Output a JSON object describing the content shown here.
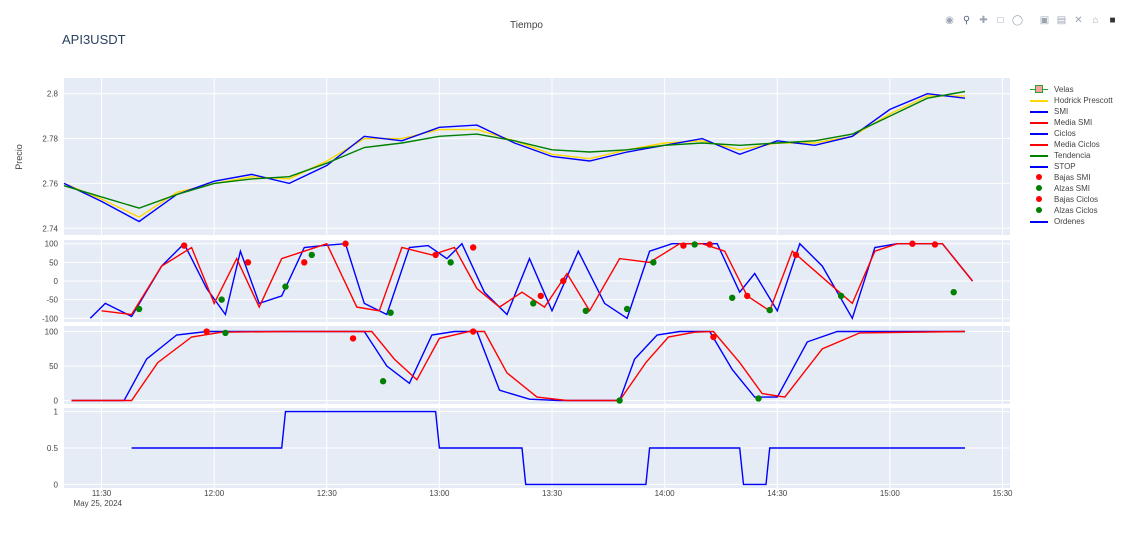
{
  "title": "API3USDT",
  "xaxis_title": "Tiempo",
  "yaxis_title": "Precio",
  "date_label": "May 25, 2024",
  "modebar": [
    "camera-icon",
    "zoom-icon",
    "pan-icon",
    "box-select-icon",
    "lasso-icon",
    "zoom-in-icon",
    "zoom-out-icon",
    "autoscale-icon",
    "reset-icon",
    "plotly-logo-icon"
  ],
  "legend": [
    {
      "name": "Velas",
      "color": "#2ca02c",
      "kind": "candle"
    },
    {
      "name": "Hodrick Prescott",
      "color": "#ffd700",
      "kind": "line"
    },
    {
      "name": "SMI",
      "color": "#0000ff",
      "kind": "line"
    },
    {
      "name": "Media SMI",
      "color": "#ff0000",
      "kind": "line"
    },
    {
      "name": "Ciclos",
      "color": "#0000ff",
      "kind": "line"
    },
    {
      "name": "Media Ciclos",
      "color": "#ff0000",
      "kind": "line"
    },
    {
      "name": "Tendencia",
      "color": "#008000",
      "kind": "line"
    },
    {
      "name": "STOP",
      "color": "#0000ff",
      "kind": "line"
    },
    {
      "name": "Bajas SMI",
      "color": "#ff0000",
      "kind": "marker"
    },
    {
      "name": "Alzas SMI",
      "color": "#008000",
      "kind": "marker"
    },
    {
      "name": "Bajas Ciclos",
      "color": "#ff0000",
      "kind": "marker"
    },
    {
      "name": "Alzas Ciclos",
      "color": "#008000",
      "kind": "marker"
    },
    {
      "name": "Ordenes",
      "color": "#0000ff",
      "kind": "line"
    }
  ],
  "chart_data": {
    "type": "line",
    "x_range": [
      "11:20",
      "15:32"
    ],
    "x_ticks": [
      "11:30",
      "12:00",
      "12:30",
      "13:00",
      "13:30",
      "14:00",
      "14:30",
      "15:00",
      "15:30"
    ],
    "grid": true,
    "legend_position": "right",
    "panels": [
      {
        "name": "price",
        "ylim": [
          2.737,
          2.807
        ],
        "y_ticks": [
          2.74,
          2.76,
          2.78,
          2.8
        ],
        "series": [
          {
            "name": "Hodrick Prescott",
            "x": [
              "11:20",
              "11:30",
              "11:40",
              "11:50",
              "12:00",
              "12:10",
              "12:20",
              "12:30",
              "12:40",
              "12:50",
              "13:00",
              "13:10",
              "13:20",
              "13:30",
              "13:40",
              "13:50",
              "14:00",
              "14:10",
              "14:20",
              "14:30",
              "14:40",
              "14:50",
              "15:00",
              "15:10",
              "15:20"
            ],
            "y": [
              2.76,
              2.753,
              2.745,
              2.756,
              2.76,
              2.763,
              2.762,
              2.77,
              2.78,
              2.78,
              2.784,
              2.784,
              2.779,
              2.773,
              2.771,
              2.775,
              2.778,
              2.779,
              2.775,
              2.778,
              2.778,
              2.781,
              2.791,
              2.799,
              2.799
            ]
          },
          {
            "name": "SMI",
            "x": [
              "11:20",
              "11:30",
              "11:40",
              "11:50",
              "12:00",
              "12:10",
              "12:20",
              "12:30",
              "12:40",
              "12:50",
              "13:00",
              "13:10",
              "13:20",
              "13:30",
              "13:40",
              "13:50",
              "14:00",
              "14:10",
              "14:20",
              "14:30",
              "14:40",
              "14:50",
              "15:00",
              "15:10",
              "15:20"
            ],
            "y": [
              2.76,
              2.752,
              2.743,
              2.755,
              2.761,
              2.764,
              2.76,
              2.768,
              2.781,
              2.779,
              2.785,
              2.786,
              2.778,
              2.772,
              2.77,
              2.774,
              2.777,
              2.78,
              2.773,
              2.779,
              2.777,
              2.781,
              2.793,
              2.8,
              2.798
            ]
          },
          {
            "name": "Tendencia",
            "x": [
              "11:20",
              "11:30",
              "11:40",
              "11:50",
              "12:00",
              "12:10",
              "12:20",
              "12:30",
              "12:40",
              "12:50",
              "13:00",
              "13:10",
              "13:20",
              "13:30",
              "13:40",
              "13:50",
              "14:00",
              "14:10",
              "14:20",
              "14:30",
              "14:40",
              "14:50",
              "15:00",
              "15:10",
              "15:20"
            ],
            "y": [
              2.759,
              2.754,
              2.749,
              2.755,
              2.76,
              2.762,
              2.763,
              2.769,
              2.776,
              2.778,
              2.781,
              2.782,
              2.779,
              2.775,
              2.774,
              2.775,
              2.777,
              2.778,
              2.777,
              2.778,
              2.779,
              2.782,
              2.79,
              2.798,
              2.801
            ]
          }
        ]
      },
      {
        "name": "smi",
        "ylim": [
          -110,
          110
        ],
        "y_ticks": [
          -100,
          -50,
          0,
          50,
          100
        ],
        "series": [
          {
            "name": "SMI",
            "x": [
              "11:27",
              "11:31",
              "11:38",
              "11:46",
              "11:52",
              "11:58",
              "12:03",
              "12:07",
              "12:12",
              "12:18",
              "12:24",
              "12:29",
              "12:35",
              "12:40",
              "12:46",
              "12:52",
              "12:57",
              "13:02",
              "13:06",
              "13:12",
              "13:18",
              "13:24",
              "13:30",
              "13:37",
              "13:44",
              "13:50",
              "13:56",
              "14:02",
              "14:08",
              "14:14",
              "14:20",
              "14:24",
              "14:30",
              "14:36",
              "14:42",
              "14:50",
              "14:56",
              "15:02",
              "15:08",
              "15:14",
              "15:22"
            ],
            "y": [
              -100,
              -60,
              -95,
              40,
              100,
              -20,
              -90,
              80,
              -60,
              -40,
              90,
              95,
              100,
              -60,
              -90,
              90,
              95,
              60,
              100,
              -30,
              -90,
              60,
              -80,
              80,
              -60,
              -100,
              80,
              100,
              100,
              100,
              -30,
              20,
              -80,
              100,
              40,
              -100,
              90,
              100,
              100,
              100,
              0
            ]
          },
          {
            "name": "Media SMI",
            "x": [
              "11:30",
              "11:38",
              "11:46",
              "11:54",
              "12:00",
              "12:06",
              "12:12",
              "12:18",
              "12:24",
              "12:30",
              "12:38",
              "12:44",
              "12:50",
              "12:58",
              "13:04",
              "13:10",
              "13:16",
              "13:22",
              "13:28",
              "13:34",
              "13:40",
              "13:48",
              "13:56",
              "14:04",
              "14:10",
              "14:16",
              "14:22",
              "14:28",
              "14:34",
              "14:42",
              "14:50",
              "14:56",
              "15:02",
              "15:08",
              "15:14",
              "15:22"
            ],
            "y": [
              -80,
              -90,
              40,
              90,
              -60,
              60,
              -70,
              60,
              80,
              100,
              -70,
              -80,
              90,
              70,
              90,
              -20,
              -70,
              -30,
              -70,
              20,
              -80,
              60,
              50,
              100,
              100,
              80,
              -40,
              -80,
              80,
              10,
              -60,
              80,
              100,
              100,
              100,
              0
            ]
          },
          {
            "name": "Bajas SMI",
            "x": [
              "11:52",
              "12:09",
              "12:24",
              "12:35",
              "12:59",
              "13:09",
              "13:27",
              "13:33",
              "14:05",
              "14:12",
              "14:22",
              "14:35",
              "15:06",
              "15:12"
            ],
            "y": [
              95,
              50,
              50,
              100,
              70,
              90,
              -40,
              0,
              95,
              98,
              -40,
              70,
              100,
              98
            ]
          },
          {
            "name": "Alzas SMI",
            "x": [
              "11:40",
              "12:02",
              "12:19",
              "12:26",
              "12:47",
              "13:03",
              "13:25",
              "13:39",
              "13:50",
              "13:57",
              "14:08",
              "14:18",
              "14:28",
              "14:47",
              "15:17"
            ],
            "y": [
              -75,
              -50,
              -15,
              70,
              -85,
              50,
              -60,
              -80,
              -75,
              50,
              98,
              -45,
              -78,
              -40,
              -30
            ]
          }
        ]
      },
      {
        "name": "ciclos",
        "ylim": [
          -5,
          108
        ],
        "y_ticks": [
          0,
          50,
          100
        ],
        "series": [
          {
            "name": "Ciclos",
            "x": [
              "11:22",
              "11:36",
              "11:42",
              "11:50",
              "11:58",
              "12:20",
              "12:40",
              "12:46",
              "12:52",
              "12:58",
              "13:04",
              "13:10",
              "13:16",
              "13:24",
              "13:32",
              "13:48",
              "13:52",
              "13:58",
              "14:04",
              "14:12",
              "14:18",
              "14:24",
              "14:30",
              "14:38",
              "14:46",
              "15:20"
            ],
            "y": [
              0,
              0,
              60,
              95,
              100,
              100,
              100,
              50,
              25,
              95,
              100,
              100,
              15,
              2,
              0,
              0,
              60,
              95,
              100,
              100,
              45,
              5,
              5,
              85,
              100,
              100
            ]
          },
          {
            "name": "Media Ciclos",
            "x": [
              "11:22",
              "11:38",
              "11:45",
              "11:54",
              "12:02",
              "12:20",
              "12:42",
              "12:48",
              "12:54",
              "13:00",
              "13:08",
              "13:12",
              "13:18",
              "13:26",
              "13:34",
              "13:48",
              "13:55",
              "14:01",
              "14:08",
              "14:13",
              "14:20",
              "14:26",
              "14:32",
              "14:42",
              "14:52",
              "15:20"
            ],
            "y": [
              0,
              0,
              55,
              92,
              99,
              100,
              100,
              60,
              30,
              90,
              100,
              100,
              40,
              5,
              0,
              0,
              55,
              92,
              99,
              100,
              55,
              10,
              5,
              75,
              98,
              100
            ]
          },
          {
            "name": "Bajas Ciclos",
            "x": [
              "11:58",
              "12:37",
              "13:09",
              "14:13"
            ],
            "y": [
              100,
              90,
              100,
              92
            ]
          },
          {
            "name": "Alzas Ciclos",
            "x": [
              "12:03",
              "12:45",
              "13:48",
              "14:25"
            ],
            "y": [
              98,
              28,
              0,
              3
            ]
          }
        ]
      },
      {
        "name": "ordenes",
        "ylim": [
          -0.05,
          1.05
        ],
        "y_ticks": [
          0,
          0.5,
          1
        ],
        "series": [
          {
            "name": "Ordenes",
            "x": [
              "11:38",
              "12:18",
              "12:19",
              "12:59",
              "13:00",
              "13:22",
              "13:23",
              "13:55",
              "13:56",
              "14:20",
              "14:21",
              "14:27",
              "14:28",
              "15:20"
            ],
            "y": [
              0.5,
              0.5,
              1,
              1,
              0.5,
              0.5,
              0,
              0,
              0.5,
              0.5,
              0,
              0,
              0.5,
              0.5
            ]
          }
        ]
      }
    ]
  }
}
